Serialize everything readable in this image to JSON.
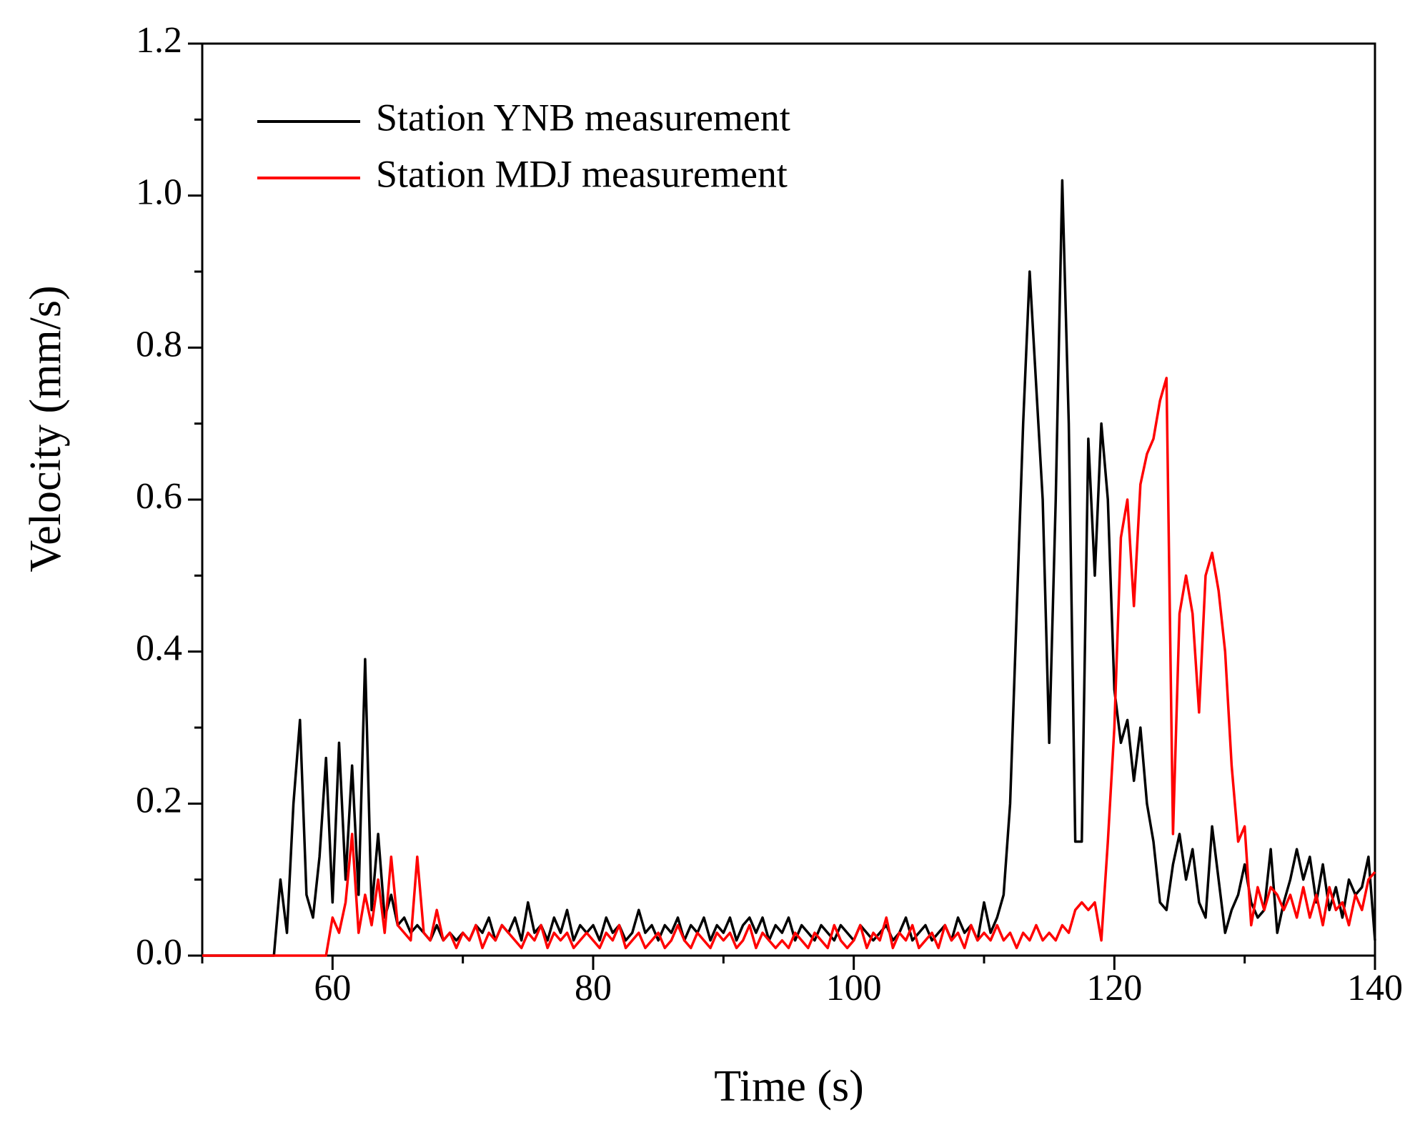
{
  "chart_data": {
    "type": "line",
    "xlabel": "Time (s)",
    "ylabel": "Velocity (mm/s)",
    "x": [
      50,
      50.5,
      51,
      51.5,
      52,
      52.5,
      53,
      53.5,
      54,
      54.5,
      55,
      55.5,
      56,
      56.5,
      57,
      57.5,
      58,
      58.5,
      59,
      59.5,
      60,
      60.5,
      61,
      61.5,
      62,
      62.5,
      63,
      63.5,
      64,
      64.5,
      65,
      65.5,
      66,
      66.5,
      67,
      67.5,
      68,
      68.5,
      69,
      69.5,
      70,
      70.5,
      71,
      71.5,
      72,
      72.5,
      73,
      73.5,
      74,
      74.5,
      75,
      75.5,
      76,
      76.5,
      77,
      77.5,
      78,
      78.5,
      79,
      79.5,
      80,
      80.5,
      81,
      81.5,
      82,
      82.5,
      83,
      83.5,
      84,
      84.5,
      85,
      85.5,
      86,
      86.5,
      87,
      87.5,
      88,
      88.5,
      89,
      89.5,
      90,
      90.5,
      91,
      91.5,
      92,
      92.5,
      93,
      93.5,
      94,
      94.5,
      95,
      95.5,
      96,
      96.5,
      97,
      97.5,
      98,
      98.5,
      99,
      99.5,
      100,
      100.5,
      101,
      101.5,
      102,
      102.5,
      103,
      103.5,
      104,
      104.5,
      105,
      105.5,
      106,
      106.5,
      107,
      107.5,
      108,
      108.5,
      109,
      109.5,
      110,
      110.5,
      111,
      111.5,
      112,
      112.5,
      113,
      113.5,
      114,
      114.5,
      115,
      115.5,
      116,
      116.5,
      117,
      117.5,
      118,
      118.5,
      119,
      119.5,
      120,
      120.5,
      121,
      121.5,
      122,
      122.5,
      123,
      123.5,
      124,
      124.5,
      125,
      125.5,
      126,
      126.5,
      127,
      127.5,
      128,
      128.5,
      129,
      129.5,
      130,
      130.5,
      131,
      131.5,
      132,
      132.5,
      133,
      133.5,
      134,
      134.5,
      135,
      135.5,
      136,
      136.5,
      137,
      137.5,
      138,
      138.5,
      139,
      139.5,
      140
    ],
    "series": [
      {
        "name": "Station YNB measurement",
        "color": "#000000",
        "values": [
          0,
          0,
          0,
          0,
          0,
          0,
          0,
          0,
          0,
          0,
          0,
          0,
          0.1,
          0.03,
          0.2,
          0.31,
          0.08,
          0.05,
          0.13,
          0.26,
          0.07,
          0.28,
          0.1,
          0.25,
          0.08,
          0.39,
          0.06,
          0.16,
          0.05,
          0.08,
          0.04,
          0.05,
          0.03,
          0.04,
          0.03,
          0.02,
          0.04,
          0.02,
          0.03,
          0.02,
          0.03,
          0.02,
          0.04,
          0.03,
          0.05,
          0.02,
          0.04,
          0.03,
          0.05,
          0.02,
          0.07,
          0.03,
          0.04,
          0.02,
          0.05,
          0.03,
          0.06,
          0.02,
          0.04,
          0.03,
          0.04,
          0.02,
          0.05,
          0.03,
          0.04,
          0.02,
          0.03,
          0.06,
          0.03,
          0.04,
          0.02,
          0.04,
          0.03,
          0.05,
          0.02,
          0.04,
          0.03,
          0.05,
          0.02,
          0.04,
          0.03,
          0.05,
          0.02,
          0.04,
          0.05,
          0.03,
          0.05,
          0.02,
          0.04,
          0.03,
          0.05,
          0.02,
          0.04,
          0.03,
          0.02,
          0.04,
          0.03,
          0.02,
          0.04,
          0.03,
          0.02,
          0.04,
          0.03,
          0.02,
          0.03,
          0.04,
          0.02,
          0.03,
          0.05,
          0.02,
          0.03,
          0.04,
          0.02,
          0.03,
          0.04,
          0.02,
          0.05,
          0.03,
          0.04,
          0.02,
          0.07,
          0.03,
          0.05,
          0.08,
          0.2,
          0.45,
          0.7,
          0.9,
          0.75,
          0.6,
          0.28,
          0.6,
          1.02,
          0.7,
          0.15,
          0.15,
          0.68,
          0.5,
          0.7,
          0.6,
          0.35,
          0.28,
          0.31,
          0.23,
          0.3,
          0.2,
          0.15,
          0.07,
          0.06,
          0.12,
          0.16,
          0.1,
          0.14,
          0.07,
          0.05,
          0.17,
          0.1,
          0.03,
          0.06,
          0.08,
          0.12,
          0.07,
          0.05,
          0.06,
          0.14,
          0.03,
          0.07,
          0.1,
          0.14,
          0.1,
          0.13,
          0.07,
          0.12,
          0.06,
          0.09,
          0.05,
          0.1,
          0.08,
          0.09,
          0.13,
          0.02
        ]
      },
      {
        "name": "Station MDJ measurement",
        "color": "#ff0000",
        "values": [
          0,
          0,
          0,
          0,
          0,
          0,
          0,
          0,
          0,
          0,
          0,
          0,
          0,
          0,
          0,
          0,
          0,
          0,
          0,
          0,
          0.05,
          0.03,
          0.07,
          0.16,
          0.03,
          0.08,
          0.04,
          0.1,
          0.03,
          0.13,
          0.04,
          0.03,
          0.02,
          0.13,
          0.03,
          0.02,
          0.06,
          0.02,
          0.03,
          0.01,
          0.03,
          0.02,
          0.04,
          0.01,
          0.03,
          0.02,
          0.04,
          0.03,
          0.02,
          0.01,
          0.03,
          0.02,
          0.04,
          0.01,
          0.03,
          0.02,
          0.03,
          0.01,
          0.02,
          0.03,
          0.02,
          0.01,
          0.03,
          0.02,
          0.04,
          0.01,
          0.02,
          0.03,
          0.01,
          0.02,
          0.03,
          0.01,
          0.02,
          0.04,
          0.02,
          0.01,
          0.03,
          0.02,
          0.01,
          0.03,
          0.02,
          0.03,
          0.01,
          0.02,
          0.04,
          0.01,
          0.03,
          0.02,
          0.01,
          0.02,
          0.01,
          0.03,
          0.02,
          0.01,
          0.03,
          0.02,
          0.01,
          0.04,
          0.02,
          0.01,
          0.02,
          0.04,
          0.01,
          0.03,
          0.02,
          0.05,
          0.01,
          0.03,
          0.02,
          0.04,
          0.01,
          0.02,
          0.03,
          0.01,
          0.04,
          0.02,
          0.03,
          0.01,
          0.04,
          0.02,
          0.03,
          0.02,
          0.04,
          0.02,
          0.03,
          0.01,
          0.03,
          0.02,
          0.04,
          0.02,
          0.03,
          0.02,
          0.04,
          0.03,
          0.06,
          0.07,
          0.06,
          0.07,
          0.02,
          0.15,
          0.3,
          0.55,
          0.6,
          0.46,
          0.62,
          0.66,
          0.68,
          0.73,
          0.76,
          0.16,
          0.45,
          0.5,
          0.45,
          0.32,
          0.5,
          0.53,
          0.48,
          0.4,
          0.25,
          0.15,
          0.17,
          0.04,
          0.09,
          0.06,
          0.09,
          0.08,
          0.06,
          0.08,
          0.05,
          0.09,
          0.05,
          0.08,
          0.04,
          0.09,
          0.06,
          0.07,
          0.04,
          0.08,
          0.06,
          0.1,
          0.11
        ]
      }
    ],
    "xlim": [
      50,
      140
    ],
    "xticks": [
      60,
      80,
      100,
      120,
      140
    ],
    "xminorticks": [
      50,
      70,
      90,
      110,
      130
    ],
    "ylim": [
      0,
      1.2
    ],
    "yticks": [
      {
        "value": 0,
        "label": "0.0"
      },
      0.2,
      0.4,
      0.6,
      0.8,
      {
        "value": 1,
        "label": "1.0"
      },
      1.2
    ],
    "yminorticks": [
      0.1,
      0.3,
      0.5,
      0.7,
      0.9,
      1.1
    ],
    "grid": false,
    "legend": "upper left"
  }
}
